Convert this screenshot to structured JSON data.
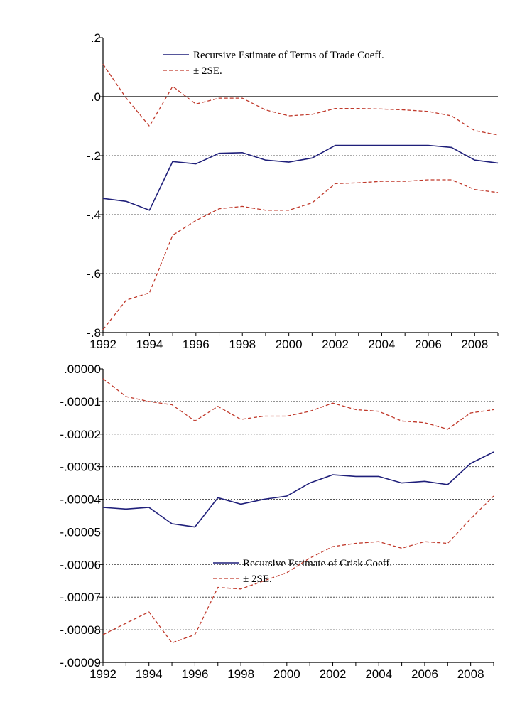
{
  "chart_data": [
    {
      "type": "line",
      "title": "",
      "xlabel": "",
      "ylabel": "",
      "x": [
        1992,
        1993,
        1994,
        1995,
        1996,
        1997,
        1998,
        1999,
        2000,
        2001,
        2002,
        2003,
        2004,
        2005,
        2006,
        2007,
        2008,
        2009
      ],
      "x_ticks": [
        "1992",
        "1994",
        "1996",
        "1998",
        "2000",
        "2002",
        "2004",
        "2006",
        "2008"
      ],
      "xlim": [
        1992,
        2009
      ],
      "ylim": [
        -0.8,
        0.2
      ],
      "y_ticks": [
        0.2,
        0.0,
        -0.2,
        -0.4,
        -0.6,
        -0.8
      ],
      "y_tick_labels": [
        ".2",
        ".0",
        "-.2",
        "-.4",
        "-.6",
        "-.8"
      ],
      "zero_line": true,
      "grid": "horizontal dotted",
      "legend_position": "top-right",
      "series": [
        {
          "name": "Recursive Estimate of Terms of Trade Coeff.",
          "style": "solid",
          "color": "#1f1f7a",
          "values": [
            -0.345,
            -0.355,
            -0.385,
            -0.22,
            -0.228,
            -0.192,
            -0.19,
            -0.215,
            -0.222,
            -0.208,
            -0.165,
            -0.165,
            -0.165,
            -0.165,
            -0.165,
            -0.172,
            -0.215,
            -0.225
          ]
        },
        {
          "name": "± 2SE.",
          "style": "dashed",
          "color": "#c0392b",
          "values": [
            0.11,
            -0.005,
            -0.1,
            0.035,
            -0.025,
            -0.005,
            -0.005,
            -0.045,
            -0.065,
            -0.06,
            -0.04,
            -0.04,
            -0.042,
            -0.045,
            -0.05,
            -0.065,
            -0.115,
            -0.13
          ]
        },
        {
          "name": "",
          "style": "dashed",
          "color": "#c0392b",
          "values": [
            -0.79,
            -0.69,
            -0.665,
            -0.47,
            -0.42,
            -0.38,
            -0.372,
            -0.385,
            -0.385,
            -0.36,
            -0.295,
            -0.292,
            -0.287,
            -0.287,
            -0.282,
            -0.282,
            -0.315,
            -0.325
          ]
        }
      ]
    },
    {
      "type": "line",
      "title": "",
      "xlabel": "",
      "ylabel": "",
      "x": [
        1992,
        1993,
        1994,
        1995,
        1996,
        1997,
        1998,
        1999,
        2000,
        2001,
        2002,
        2003,
        2004,
        2005,
        2006,
        2007,
        2008,
        2009
      ],
      "x_ticks": [
        "1992",
        "1994",
        "1996",
        "1998",
        "2000",
        "2002",
        "2004",
        "2006",
        "2008"
      ],
      "xlim": [
        1992,
        2009
      ],
      "ylim": [
        -9e-05,
        0.0
      ],
      "y_ticks": [
        0.0,
        -1e-05,
        -2e-05,
        -3e-05,
        -4e-05,
        -5e-05,
        -6e-05,
        -7e-05,
        -8e-05,
        -9e-05
      ],
      "y_tick_labels": [
        ".00000",
        "-.00001",
        "-.00002",
        "-.00003",
        "-.00004",
        "-.00005",
        "-.00006",
        "-.00007",
        "-.00008",
        "-.00009"
      ],
      "zero_line": false,
      "grid": "horizontal dotted",
      "legend_position": "bottom-right",
      "series": [
        {
          "name": "Recursive Estimate of Crisk Coeff.",
          "style": "solid",
          "color": "#1f1f7a",
          "values": [
            -4.25e-05,
            -4.3e-05,
            -4.25e-05,
            -4.75e-05,
            -4.85e-05,
            -3.95e-05,
            -4.15e-05,
            -4e-05,
            -3.9e-05,
            -3.5e-05,
            -3.25e-05,
            -3.3e-05,
            -3.3e-05,
            -3.5e-05,
            -3.45e-05,
            -3.55e-05,
            -2.9e-05,
            -2.55e-05
          ]
        },
        {
          "name": "± 2SE.",
          "style": "dashed",
          "color": "#c0392b",
          "values": [
            -3e-06,
            -8.5e-06,
            -1e-05,
            -1.1e-05,
            -1.6e-05,
            -1.15e-05,
            -1.55e-05,
            -1.45e-05,
            -1.45e-05,
            -1.3e-05,
            -1.05e-05,
            -1.25e-05,
            -1.3e-05,
            -1.6e-05,
            -1.65e-05,
            -1.85e-05,
            -1.35e-05,
            -1.25e-05
          ]
        },
        {
          "name": "",
          "style": "dashed",
          "color": "#c0392b",
          "values": [
            -8.15e-05,
            -7.8e-05,
            -7.45e-05,
            -8.4e-05,
            -8.15e-05,
            -6.7e-05,
            -6.75e-05,
            -6.5e-05,
            -6.25e-05,
            -5.8e-05,
            -5.45e-05,
            -5.35e-05,
            -5.3e-05,
            -5.5e-05,
            -5.3e-05,
            -5.35e-05,
            -4.6e-05,
            -3.9e-05
          ]
        }
      ]
    }
  ]
}
